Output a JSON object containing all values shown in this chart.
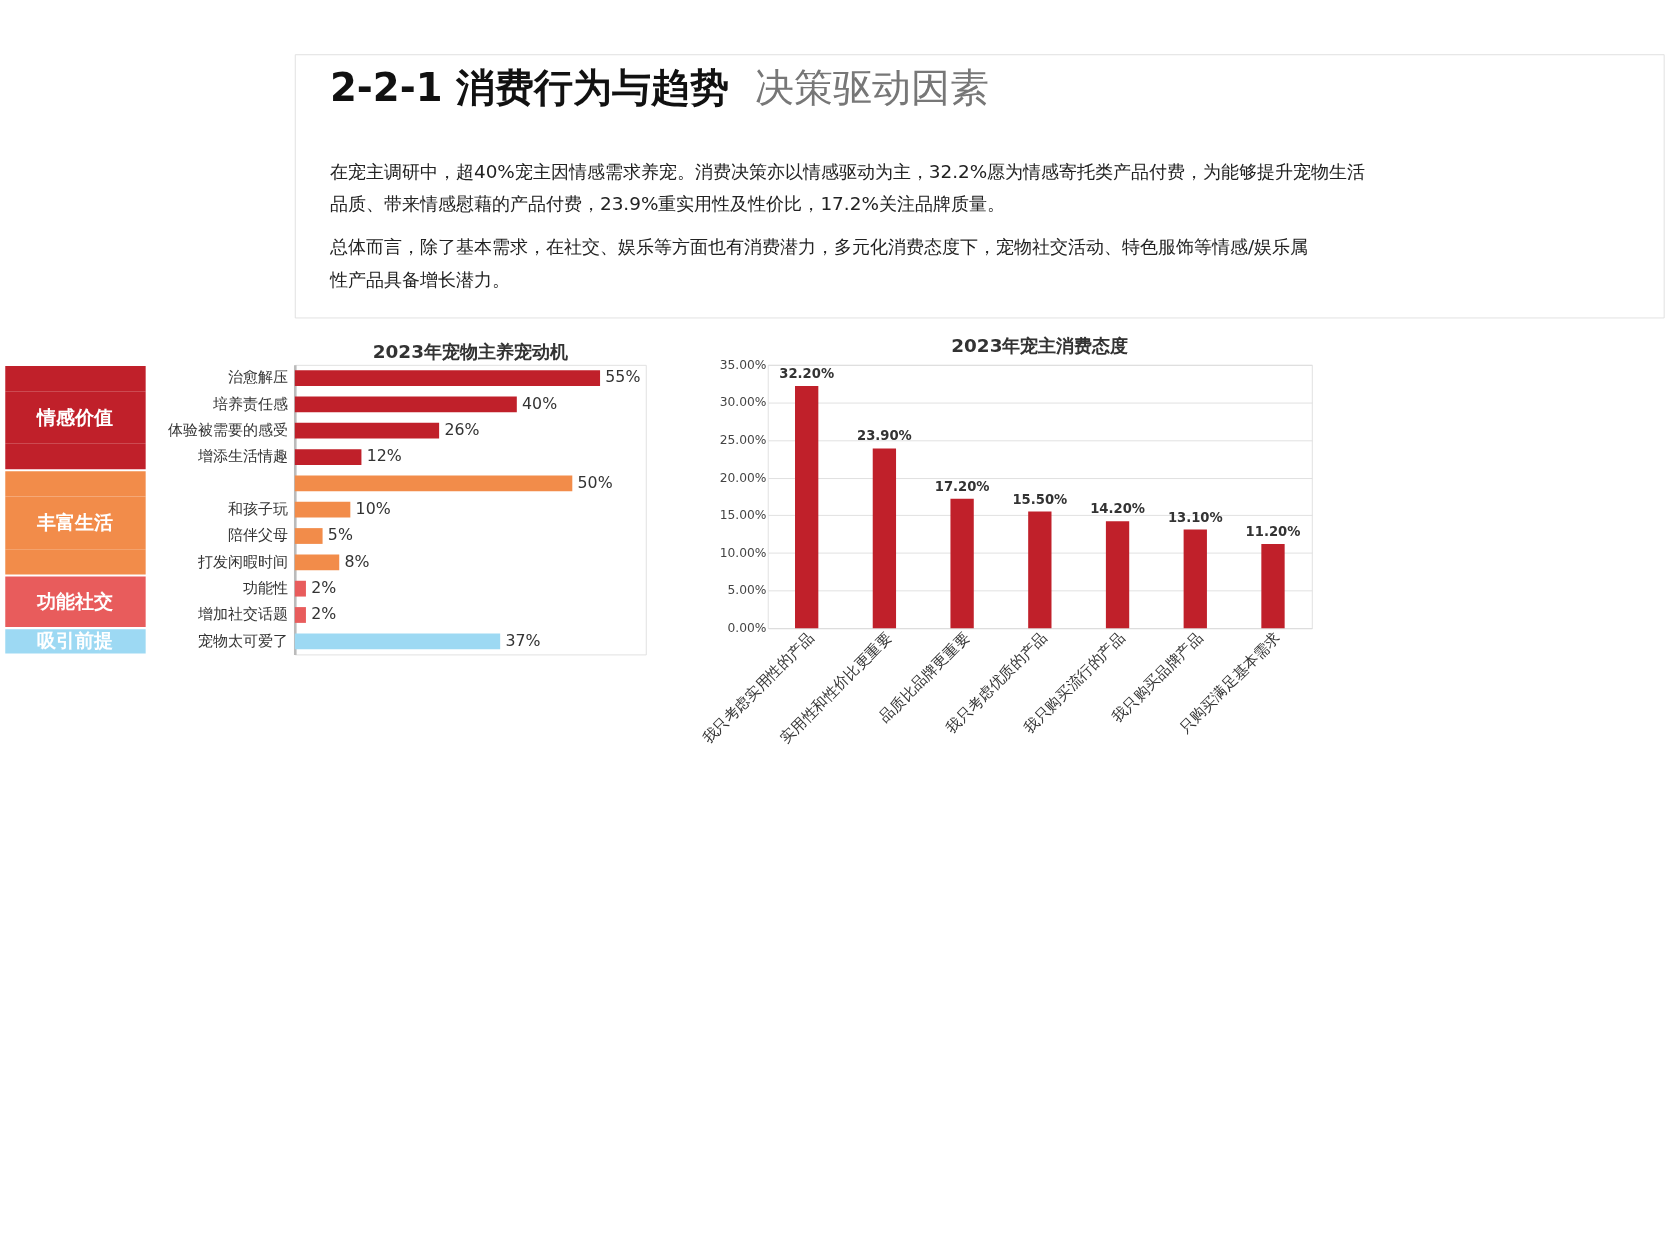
{
  "chart_data": [
    {
      "type": "other",
      "title": "2-2-1 消费行为与趋势",
      "subtitle": "决策驱动因素",
      "annotations": [
        "在宠主调研中，超40%宠主因情感需求养宠。消费决策亦以情感驱动为主，32.2%愿为情感寄托类产品付费，为能够提升宠物生活",
        "品质、带来情感慰藉的产品付费，23.9%重实用性及性价比，17.2%关注品牌质量。",
        "总体而言，除了基本需求，在社交、娱乐等方面也有消费潜力，多元化消费态度下，宠物社交活动、特色服饰等情感/娱乐属",
        "性产品具备增长潜力。"
      ]
    },
    {
      "type": "bar",
      "orientation": "horizontal",
      "title": "2023年宠物主养宠动机",
      "categories": [
        "治愈解压",
        "培养责任感",
        "体验被需要的感受",
        "增添生活情趣",
        null,
        "和孩子玩",
        "陪伴父母",
        "打发闲暇时间",
        "功能性",
        "增加社交话题",
        "宠物太可爱了"
      ],
      "series": [
        {
          "name": "情感价值",
          "color": "#c0202a",
          "values": [
            55,
            40,
            26,
            12,
            null,
            null,
            null,
            null,
            null,
            null,
            null
          ],
          "value_labels": [
            "55%",
            "40%",
            "26%",
            "12%",
            null,
            null,
            null,
            null,
            null,
            null,
            null
          ]
        },
        {
          "name": "丰富生活",
          "color": "#f28c4a",
          "values": [
            null,
            null,
            null,
            null,
            50,
            10,
            5,
            8,
            null,
            null,
            null
          ],
          "value_labels": [
            null,
            null,
            null,
            null,
            "50%",
            "10%",
            "5%",
            "8%",
            null,
            null,
            null
          ]
        },
        {
          "name": "功能社交",
          "color": "#e85c5c",
          "values": [
            null,
            null,
            null,
            null,
            null,
            null,
            null,
            null,
            2,
            2,
            null
          ],
          "value_labels": [
            null,
            null,
            null,
            null,
            null,
            null,
            null,
            null,
            "2%",
            "2%",
            null
          ]
        },
        {
          "name": "吸引前提",
          "color": "#9dd9f3",
          "values": [
            null,
            null,
            null,
            null,
            null,
            null,
            null,
            null,
            null,
            null,
            37
          ],
          "value_labels": [
            null,
            null,
            null,
            null,
            null,
            null,
            null,
            null,
            null,
            null,
            "37%"
          ]
        }
      ]
    },
    {
      "type": "bar",
      "title": "2023年宠主消费态度",
      "grid": "y",
      "categories": [
        "我只考虑实用性的产品",
        "实用性和性价比更重要",
        "品质比品牌更重要",
        "我只考虑优质的产品",
        "我只购买流行的产品",
        "我只购买品牌产品",
        "只购买满足基本需求"
      ],
      "values": [
        32.2,
        23.9,
        17.2,
        15.5,
        14.2,
        13.1,
        11.2
      ],
      "color": "#c0202a",
      "value_labels": [
        "32.20%",
        "23.90%",
        "17.20%",
        "15.50%",
        "14.20%",
        "13.10%",
        "11.20%"
      ],
      "ylim": [
        0,
        35
      ],
      "yticks": [
        {
          "value": 0,
          "label": "0.00%"
        },
        {
          "value": 5,
          "label": "5.00%"
        },
        {
          "value": 10,
          "label": "10.00%"
        },
        {
          "value": 15,
          "label": "15.00%"
        },
        {
          "value": 20,
          "label": "20.00%"
        },
        {
          "value": 25,
          "label": "25.00%"
        },
        {
          "value": 30,
          "label": "30.00%"
        },
        {
          "value": 35,
          "label": "35.00%"
        }
      ]
    }
  ]
}
